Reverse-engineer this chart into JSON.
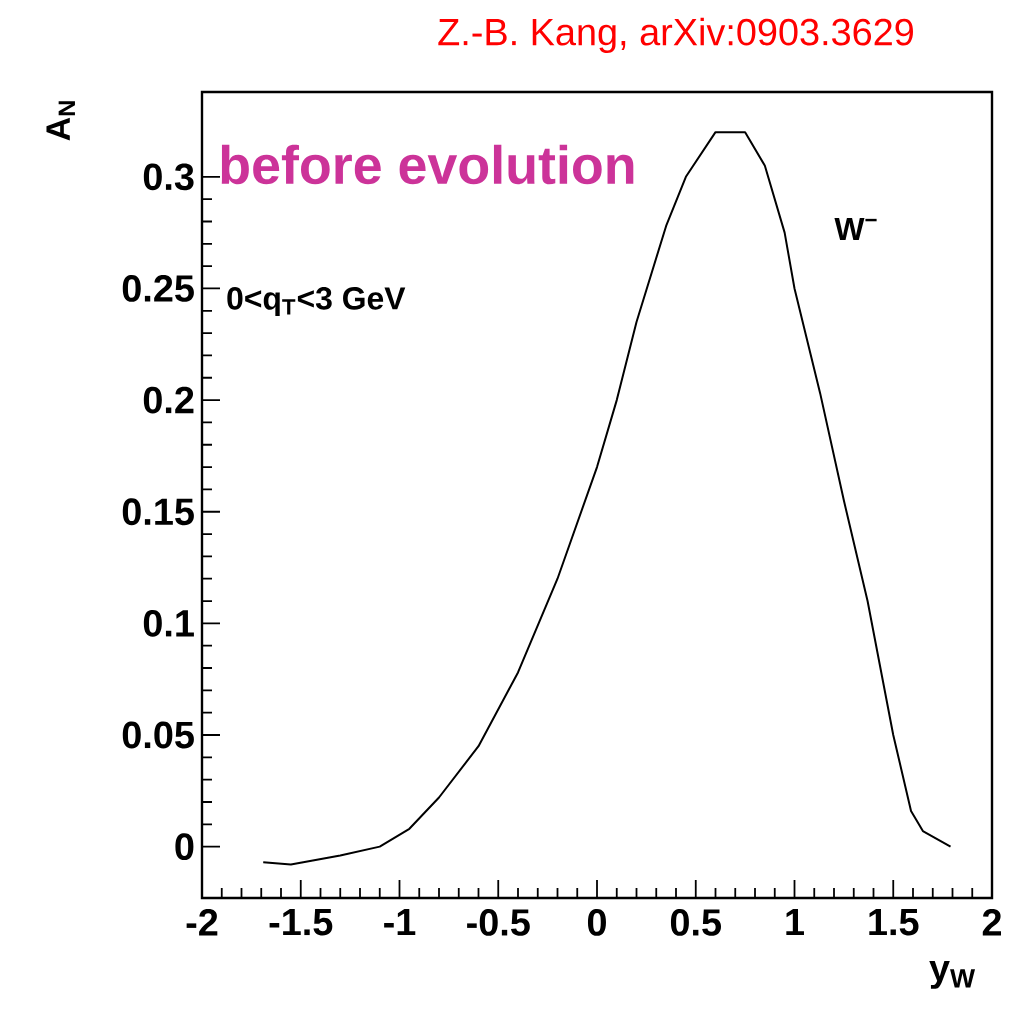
{
  "chart_data": {
    "type": "line",
    "title": "Z.-B. Kang, arXiv:0903.3629",
    "xlabel": "y$_{W}$",
    "ylabel": "A$_{N}$",
    "annotations": [
      "before evolution",
      "0<q$_{T}$<3 GeV",
      "W$^{−}$"
    ],
    "xlim": [
      -2,
      2
    ],
    "ylim": [
      -0.023,
      0.338
    ],
    "xticks": [
      -2,
      -1.5,
      -1,
      -0.5,
      0,
      0.5,
      1,
      1.5,
      2
    ],
    "yticks": [
      0,
      0.05,
      0.1,
      0.15,
      0.2,
      0.25,
      0.3
    ],
    "grid": false,
    "marker": "none",
    "line_style": "solid",
    "series": [
      {
        "color": "#000000",
        "x": [
          -1.69,
          -1.55,
          -1.3,
          -1.1,
          -0.95,
          -0.8,
          -0.6,
          -0.4,
          -0.2,
          0,
          0.1,
          0.2,
          0.35,
          0.45,
          0.6,
          0.75,
          0.85,
          0.95,
          1.0,
          1.13,
          1.25,
          1.37,
          1.5,
          1.59,
          1.65,
          1.79
        ],
        "values": [
          -0.007,
          -0.008,
          -0.004,
          0.0,
          0.008,
          0.022,
          0.045,
          0.078,
          0.12,
          0.17,
          0.2,
          0.235,
          0.278,
          0.3,
          0.32,
          0.32,
          0.305,
          0.275,
          0.25,
          0.203,
          0.155,
          0.11,
          0.05,
          0.016,
          0.007,
          0.0
        ]
      }
    ]
  }
}
